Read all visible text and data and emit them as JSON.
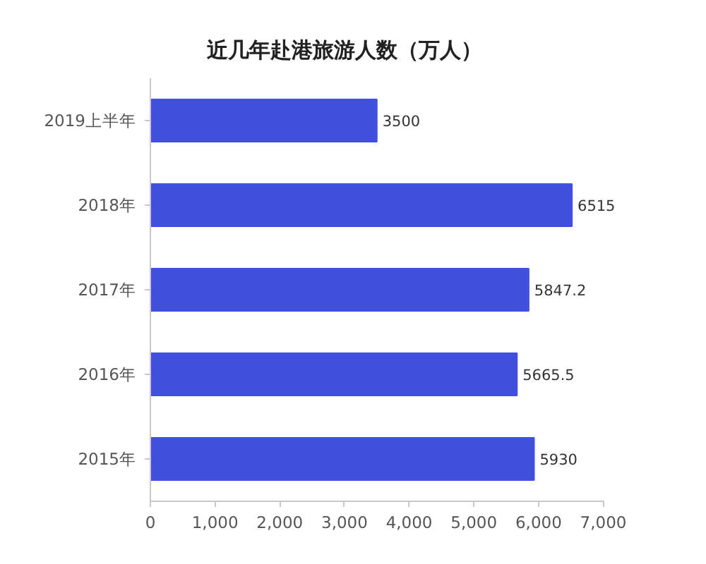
{
  "chart_data": {
    "type": "bar",
    "orientation": "horizontal",
    "title": "近几年赴港旅游人数（万人）",
    "categories": [
      "2019上半年",
      "2018年",
      "2017年",
      "2016年",
      "2015年"
    ],
    "values": [
      3500,
      6515,
      5847.2,
      5665.5,
      5930
    ],
    "color": "#4150dc",
    "xlim": [
      0,
      7000
    ],
    "xticks": [
      0,
      {
        "value": 1000,
        "label": "1,000"
      },
      {
        "value": 2000,
        "label": "2,000"
      },
      {
        "value": 3000,
        "label": "3,000"
      },
      {
        "value": 4000,
        "label": "4,000"
      },
      {
        "value": 5000,
        "label": "5,000"
      },
      {
        "value": 6000,
        "label": "6,000"
      },
      {
        "value": 7000,
        "label": "7,000"
      }
    ],
    "data_labels": true
  }
}
